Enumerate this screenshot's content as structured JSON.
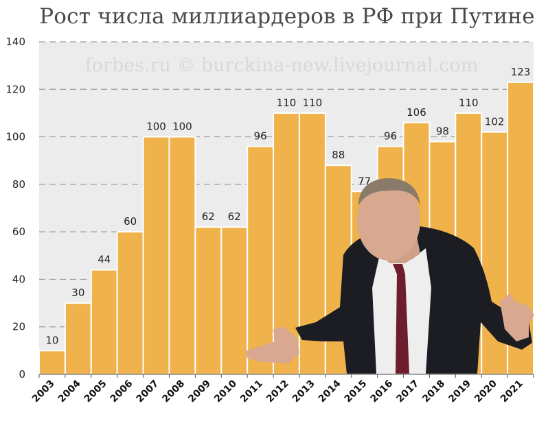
{
  "watermark": "forbes.ru © burckina-new.livejournal.com",
  "colors": {
    "bar": "#f0b24b",
    "plot_background": "#ececec",
    "grid": "#9a9a9a"
  },
  "chart_data": {
    "type": "bar",
    "title": "Рост числа миллиардеров в РФ при Путине",
    "xlabel": "",
    "ylabel": "",
    "categories": [
      "2003",
      "2004",
      "2005",
      "2006",
      "2007",
      "2008",
      "2009",
      "2010",
      "2011",
      "2012",
      "2013",
      "2014",
      "2015",
      "2016",
      "2017",
      "2018",
      "2019",
      "2020",
      "2021"
    ],
    "values": [
      10,
      30,
      44,
      60,
      100,
      100,
      62,
      62,
      96,
      110,
      110,
      88,
      77,
      96,
      106,
      98,
      110,
      102,
      123
    ],
    "ylim": [
      0,
      140
    ],
    "yticks": [
      0,
      20,
      40,
      60,
      80,
      100,
      120,
      140
    ],
    "grid": true,
    "legend": "none"
  }
}
